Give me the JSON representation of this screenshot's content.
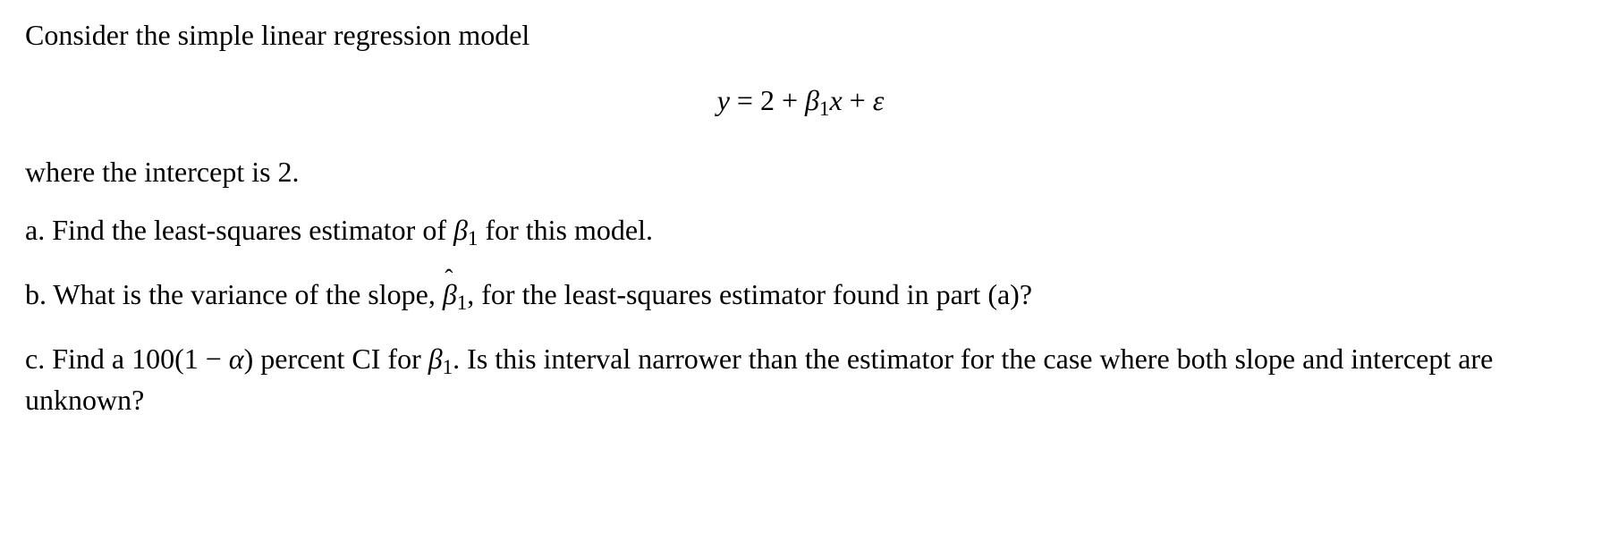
{
  "typography": {
    "font_family": "Times New Roman",
    "font_size_pt": 24,
    "text_color": "#000000",
    "background_color": "#ffffff"
  },
  "intro": {
    "line1": "Consider the simple linear regression model",
    "line2": "where the intercept is 2."
  },
  "equation": {
    "lhs_var": "y",
    "eq": " = ",
    "intercept": "2",
    "plus1": " + ",
    "beta": "β",
    "beta_sub": "1",
    "x_var": "x",
    "plus2": " + ",
    "eps": "ε"
  },
  "parts": {
    "a": {
      "label": "a. ",
      "text1": "Find the least-squares estimator of ",
      "beta": "β",
      "beta_sub": "1",
      "text2": " for this model."
    },
    "b": {
      "label": "b. ",
      "text1": "What is the variance of the slope, ",
      "hat": "ˆ",
      "beta": "β",
      "beta_sub": "1",
      "text2": ", for the least-squares estimator found in part (a)?"
    },
    "c": {
      "label": "c. ",
      "text1": "Find a ",
      "expr_100": "100(1 − ",
      "alpha": "α",
      "expr_close": ")",
      "text2": " percent CI for ",
      "beta": "β",
      "beta_sub": "1",
      "text3": ". Is this interval narrower than the estimator for the case where both slope and intercept are unknown?"
    }
  }
}
